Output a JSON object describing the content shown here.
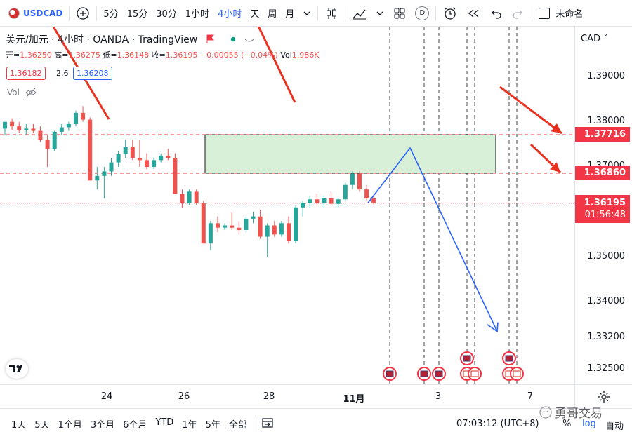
{
  "toolbar": {
    "symbol": "USDCAD",
    "intervals": [
      "5分",
      "15分",
      "30分",
      "1小时",
      "4小时",
      "天",
      "周",
      "月"
    ],
    "active_interval": "4小时",
    "replay_badge": "D",
    "layout_name": "未命名"
  },
  "legend": {
    "title": "美元/加元 · 4小时 · OANDA · TradingView",
    "open_label": "开=",
    "open": "1.36250",
    "high_label": "高=",
    "high": "1.36275",
    "low_label": "低=",
    "low": "1.36148",
    "close_label": "收=",
    "close": "1.36195",
    "change": "−0.00055 (−0.04%)",
    "vol_label": "Vol",
    "vol": "1.986K",
    "bid": "1.36182",
    "spread": "2.6",
    "ask": "1.36208",
    "vol_indicator": "Vol"
  },
  "price_axis": {
    "currency": "CAD",
    "ticks": [
      {
        "label": "1.39000",
        "value": 1.39
      },
      {
        "label": "1.38000",
        "value": 1.38
      },
      {
        "label": "1.37000",
        "value": 1.37
      },
      {
        "label": "1.35000",
        "value": 1.35
      },
      {
        "label": "1.34000",
        "value": 1.34
      },
      {
        "label": "1.33200",
        "value": 1.332
      },
      {
        "label": "1.32500",
        "value": 1.325
      }
    ],
    "upper_level": {
      "label": "1.37716",
      "value": 1.37716,
      "color": "#f23645"
    },
    "lower_level": {
      "label": "1.36860",
      "value": 1.3686,
      "color": "#f23645"
    },
    "current": {
      "label": "1.36195",
      "countdown": "01:56:48",
      "color": "#f23645"
    }
  },
  "time_axis": {
    "ticks": [
      "24",
      "26",
      "28",
      "11月",
      "3",
      "7"
    ]
  },
  "bottom_bar": {
    "ranges": [
      "1天",
      "5天",
      "1个月",
      "3个月",
      "6个月",
      "YTD",
      "1年",
      "5年",
      "全部"
    ],
    "clock": "07:03:12 (UTC+8)",
    "percent": "%",
    "log": "log",
    "auto": "自动",
    "watermark": "勇哥交易"
  },
  "colors": {
    "up": "#26a69a",
    "down": "#ef5350",
    "arrow": "#e8311f",
    "projection": "#2962ff",
    "zone_fill": "#d9f0d8"
  }
}
